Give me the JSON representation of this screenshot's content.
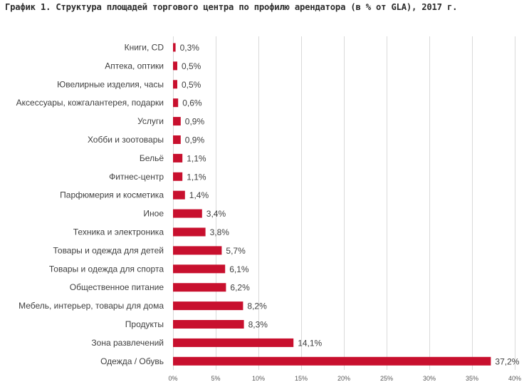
{
  "chart_data": {
    "type": "bar",
    "orientation": "horizontal",
    "title": "График 1. Структура площадей торгового центра по профилю арендатора (в % от GLA), 2017 г.",
    "categories": [
      "Книги, CD",
      "Аптека, оптики",
      "Ювелирные изделия, часы",
      "Аксессуары, кожгалантерея, подарки",
      "Услуги",
      "Хобби и зоотовары",
      "Бельё",
      "Фитнес-центр",
      "Парфюмерия и косметика",
      "Иное",
      "Техника и электроника",
      "Товары и одежда для детей",
      "Товары и одежда для спорта",
      "Общественное питание",
      "Мебель, интерьер, товары для дома",
      "Продукты",
      "Зона развлечений",
      "Одежда / Обувь"
    ],
    "values": [
      0.3,
      0.5,
      0.5,
      0.6,
      0.9,
      0.9,
      1.1,
      1.1,
      1.4,
      3.4,
      3.8,
      5.7,
      6.1,
      6.2,
      8.2,
      8.3,
      14.1,
      37.2
    ],
    "value_labels": [
      "0,3%",
      "0,5%",
      "0,5%",
      "0,6%",
      "0,9%",
      "0,9%",
      "1,1%",
      "1,1%",
      "1,4%",
      "3,4%",
      "3,8%",
      "5,7%",
      "6,1%",
      "6,2%",
      "8,2%",
      "8,3%",
      "14,1%",
      "37,2%"
    ],
    "xlim": [
      0,
      40
    ],
    "x_ticks": [
      0,
      5,
      10,
      15,
      20,
      25,
      30,
      35,
      40
    ],
    "x_tick_labels": [
      "0%",
      "5%",
      "10%",
      "15%",
      "20%",
      "25%",
      "30%",
      "35%",
      "40%"
    ],
    "grid": true,
    "bar_color": "#c8102e"
  }
}
